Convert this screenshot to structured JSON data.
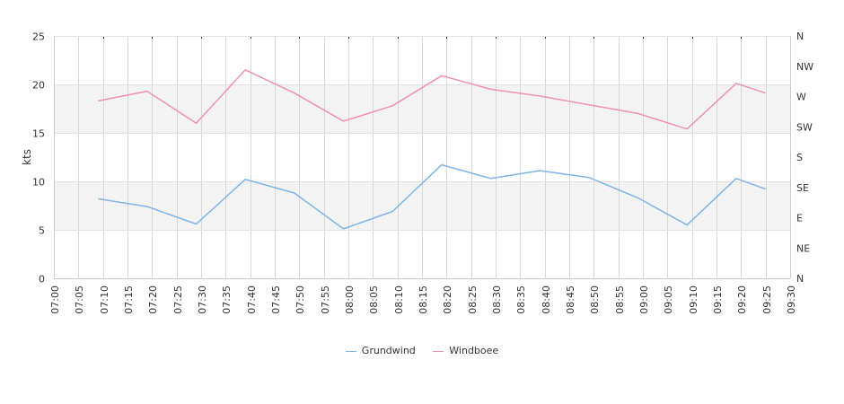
{
  "chart_data": {
    "type": "line",
    "ylabel": "kts",
    "ylim": [
      0,
      25
    ],
    "y_ticks": [
      "0",
      "5",
      "10",
      "15",
      "20",
      "25"
    ],
    "bands": [
      [
        5,
        10
      ],
      [
        15,
        20
      ]
    ],
    "grid": true,
    "legend_position": "bottom-center",
    "x_ticks": [
      "07:00",
      "07:05",
      "07:10",
      "07:15",
      "07:20",
      "07:25",
      "07:30",
      "07:35",
      "07:40",
      "07:45",
      "07:50",
      "07:55",
      "08:00",
      "08:05",
      "08:10",
      "08:15",
      "08:20",
      "08:25",
      "08:30",
      "08:35",
      "08:40",
      "08:45",
      "08:50",
      "08:55",
      "09:00",
      "09:05",
      "09:10",
      "09:15",
      "09:20",
      "09:25",
      "09:30"
    ],
    "x_range_minutes": [
      0,
      150
    ],
    "right_axis_ticks": [
      "N",
      "NE",
      "E",
      "SE",
      "S",
      "SW",
      "W",
      "NW",
      "N"
    ],
    "series": [
      {
        "name": "Grundwind",
        "color": "#7cb5ec",
        "x": [
          9,
          19,
          29,
          39,
          49,
          59,
          69,
          79,
          89,
          99,
          109,
          119,
          129,
          139,
          145
        ],
        "y": [
          8.2,
          7.4,
          5.6,
          10.2,
          8.8,
          5.1,
          6.9,
          11.7,
          10.3,
          11.1,
          10.4,
          8.3,
          5.5,
          10.3,
          9.2
        ]
      },
      {
        "name": "Windboee",
        "color": "#f28fb6",
        "x": [
          9,
          19,
          29,
          39,
          49,
          59,
          69,
          79,
          89,
          99,
          109,
          119,
          129,
          139,
          145
        ],
        "y": [
          18.3,
          19.3,
          16.0,
          21.5,
          19.1,
          16.2,
          17.8,
          20.9,
          19.5,
          18.8,
          17.9,
          17.0,
          15.4,
          20.1,
          19.1
        ]
      }
    ]
  }
}
